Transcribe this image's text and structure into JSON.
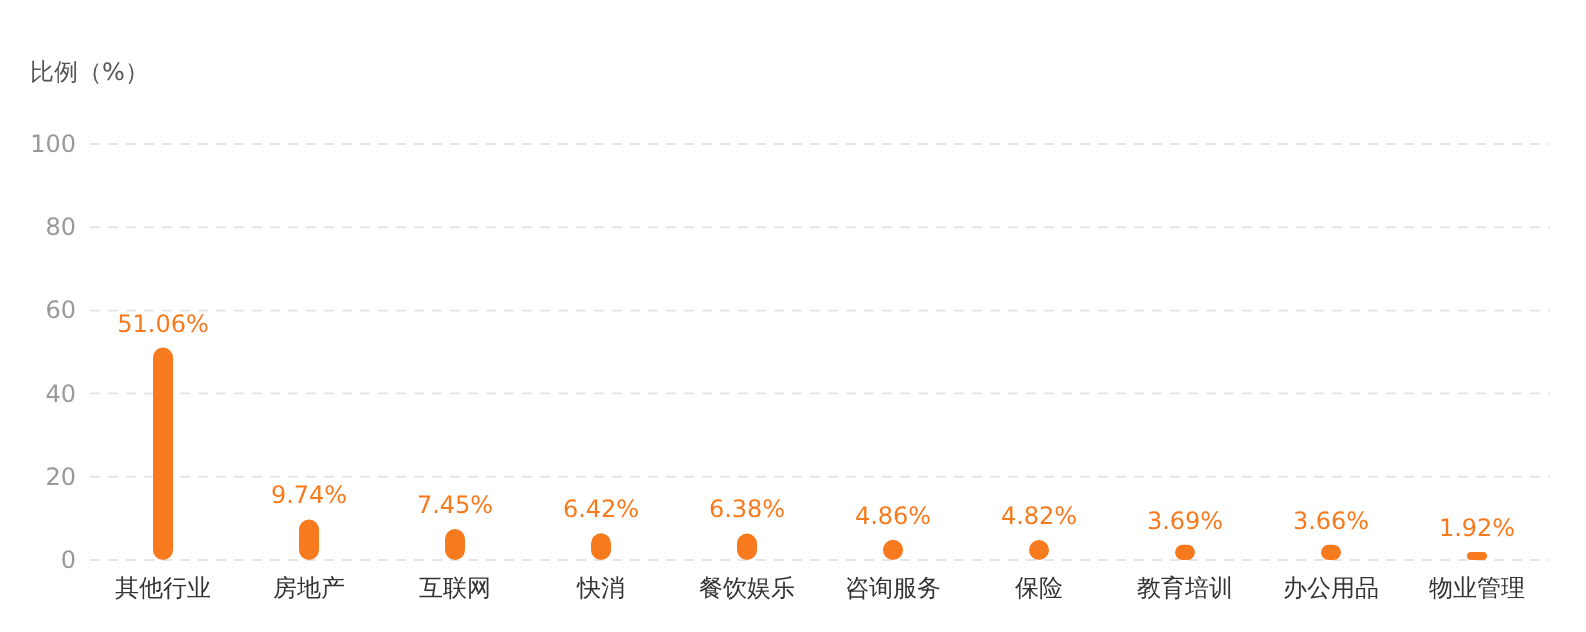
{
  "chart_data": {
    "type": "bar",
    "ylabel": "比例（%）",
    "categories": [
      "其他行业",
      "房地产",
      "互联网",
      "快消",
      "餐饮娱乐",
      "咨询服务",
      "保险",
      "教育培训",
      "办公用品",
      "物业管理"
    ],
    "values": [
      51.06,
      9.74,
      7.45,
      6.42,
      6.38,
      4.86,
      4.82,
      3.69,
      3.66,
      1.92
    ],
    "value_labels": [
      "51.06%",
      "9.74%",
      "7.45%",
      "6.42%",
      "6.38%",
      "4.86%",
      "4.82%",
      "3.69%",
      "3.66%",
      "1.92%"
    ],
    "color": "#f77b1e",
    "ylim": [
      0,
      100
    ],
    "yticks": [
      0,
      20,
      40,
      60,
      80,
      100
    ],
    "grid": "y"
  }
}
